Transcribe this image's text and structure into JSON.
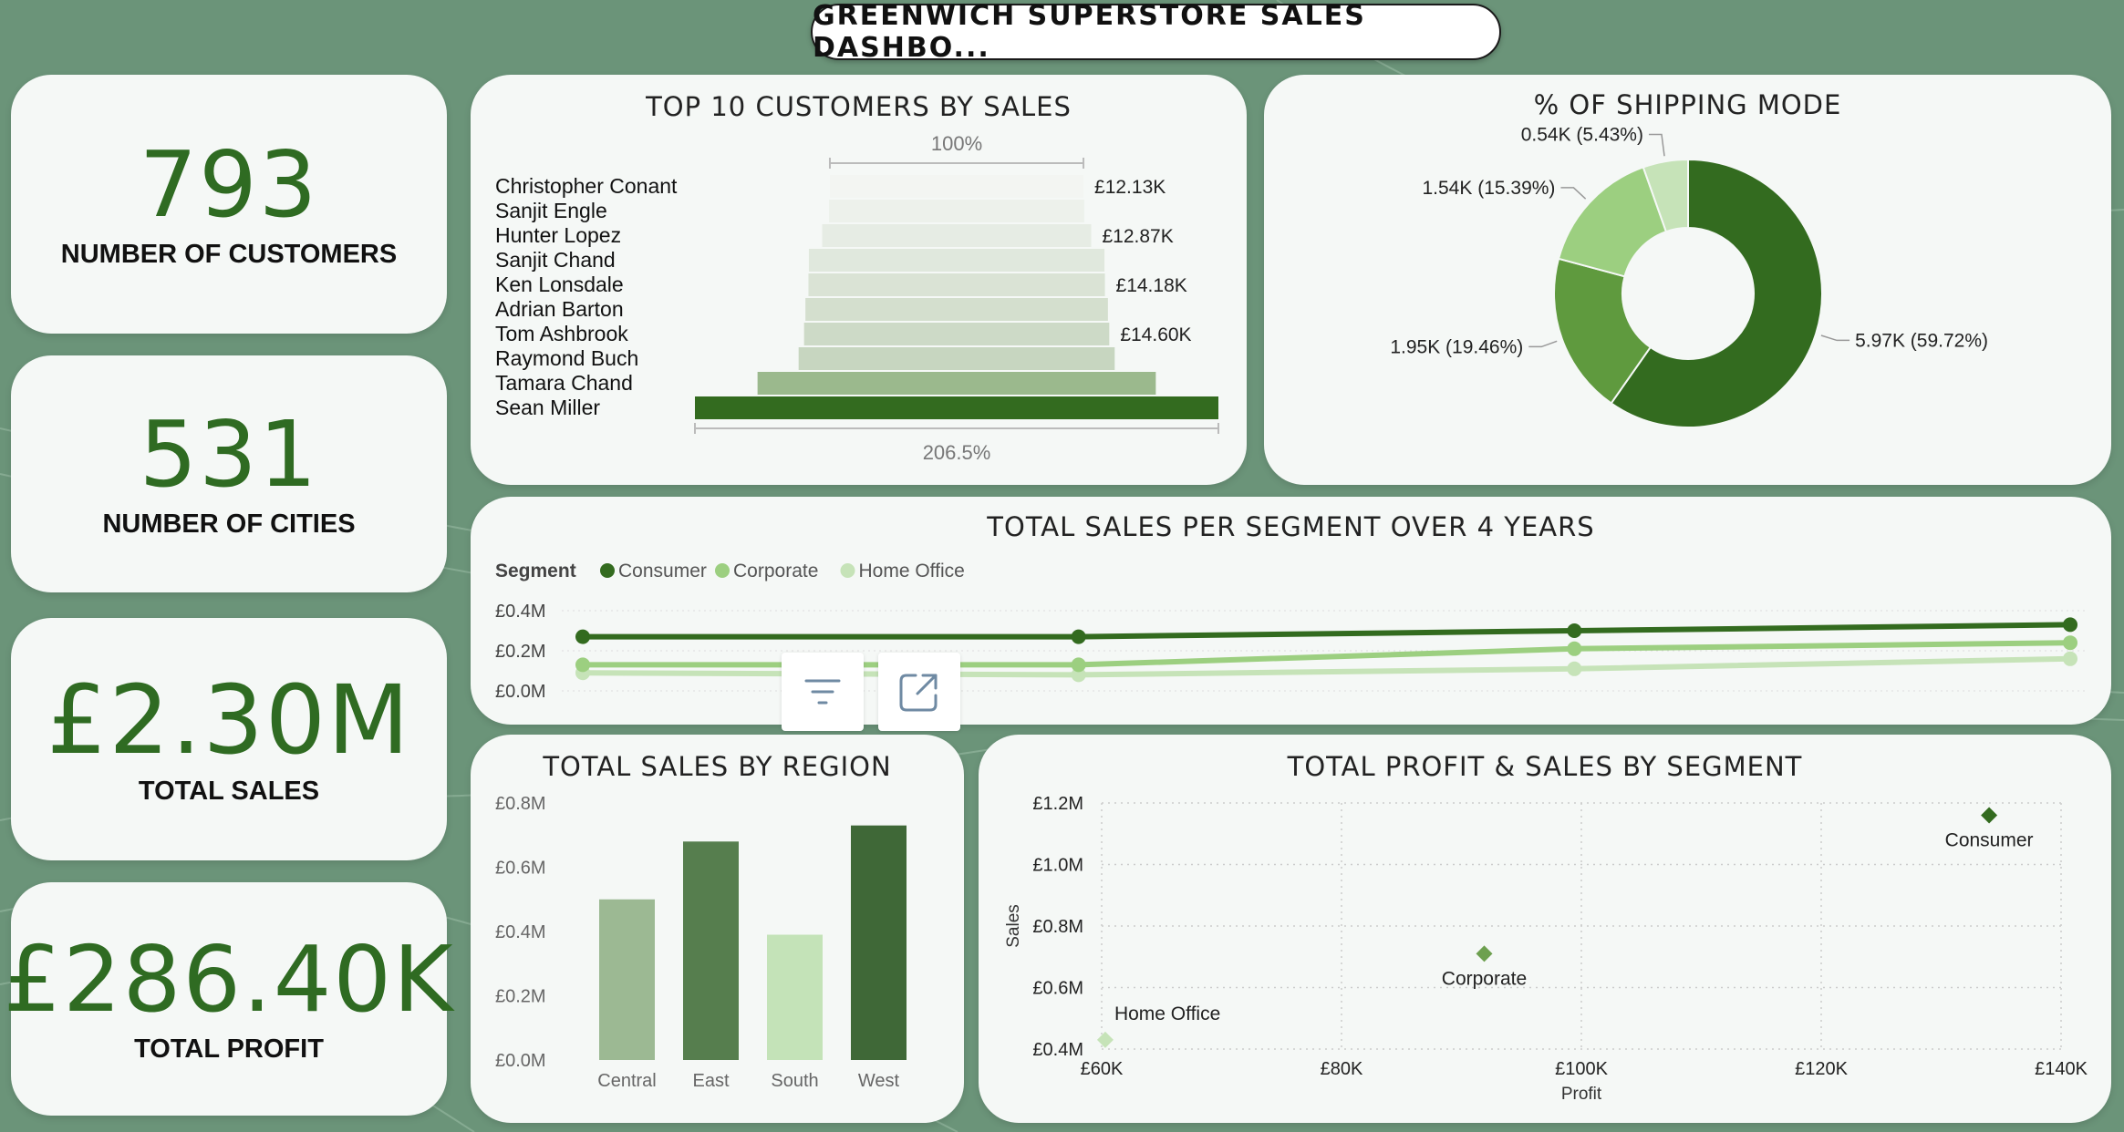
{
  "dashboard": {
    "title": "GREENWICH SUPERSTORE SALES  DASHBO..."
  },
  "kpis": [
    {
      "value": "793",
      "label": "NUMBER OF CUSTOMERS"
    },
    {
      "value": "531",
      "label": "NUMBER OF CITIES"
    },
    {
      "value": "£2.30M",
      "label": "TOTAL SALES"
    },
    {
      "value": "£286.40K",
      "label": "TOTAL PROFIT"
    }
  ],
  "colors": {
    "dark_green": "#336b1f",
    "mid_green": "#5f9a3e",
    "light_green": "#9ccf80",
    "pale_green": "#c6e3b8",
    "kpi_green": "#2f6b22"
  },
  "toolbar": {
    "filter_icon": "filter-icon",
    "focus_icon": "focus-mode-icon"
  },
  "chart_data": [
    {
      "id": "top_customers",
      "type": "bar",
      "title": "TOP 10 CUSTOMERS BY SALES",
      "orientation": "funnel",
      "top_label": "100%",
      "bottom_label": "206.5%",
      "categories": [
        "Christopher Conant",
        "Sanjit Engle",
        "Hunter Lopez",
        "Sanjit Chand",
        "Ken Lonsdale",
        "Adrian Barton",
        "Tom Ashbrook",
        "Raymond Buch",
        "Tamara Chand",
        "Sean Miller"
      ],
      "values": [
        12.13,
        12.21,
        12.87,
        14.14,
        14.18,
        14.47,
        14.6,
        15.12,
        19.05,
        25.04
      ],
      "value_labels": [
        "£12.13K",
        "",
        "£12.87K",
        "",
        "£14.18K",
        "",
        "£14.60K",
        "",
        "",
        ""
      ],
      "unit": "£K"
    },
    {
      "id": "shipping_mode",
      "type": "pie",
      "donut": true,
      "title": "% OF SHIPPING MODE",
      "slices": [
        {
          "value": 59.72,
          "label": "5.97K (59.72%)",
          "color": "#336b1f"
        },
        {
          "value": 19.46,
          "label": "1.95K (19.46%)",
          "color": "#5f9a3e"
        },
        {
          "value": 15.39,
          "label": "1.54K (15.39%)",
          "color": "#9ccf80"
        },
        {
          "value": 5.43,
          "label": "0.54K (5.43%)",
          "color": "#c6e3b8"
        }
      ]
    },
    {
      "id": "segment_over_years",
      "type": "line",
      "title": "TOTAL SALES PER SEGMENT OVER 4 YEARS",
      "legend_title": "Segment",
      "x": [
        1,
        2,
        3,
        4
      ],
      "ylim": [
        0,
        0.4
      ],
      "yticks": [
        "£0.0M",
        "£0.2M",
        "£0.4M"
      ],
      "series": [
        {
          "name": "Consumer",
          "values": [
            0.27,
            0.27,
            0.3,
            0.33
          ],
          "color": "#336b1f"
        },
        {
          "name": "Corporate",
          "values": [
            0.13,
            0.13,
            0.21,
            0.24
          ],
          "color": "#9ccf80"
        },
        {
          "name": "Home Office",
          "values": [
            0.09,
            0.08,
            0.11,
            0.16
          ],
          "color": "#c6e3b8"
        }
      ]
    },
    {
      "id": "sales_by_region",
      "type": "bar",
      "title": "TOTAL SALES BY REGION",
      "categories": [
        "Central",
        "East",
        "South",
        "West"
      ],
      "values": [
        0.5,
        0.68,
        0.39,
        0.73
      ],
      "colors": [
        "#9cb993",
        "#567e4e",
        "#c4e3b8",
        "#3f6837"
      ],
      "ylim": [
        0,
        0.8
      ],
      "yticks": [
        "£0.0M",
        "£0.2M",
        "£0.4M",
        "£0.6M",
        "£0.8M"
      ]
    },
    {
      "id": "profit_sales_segment",
      "type": "scatter",
      "title": "TOTAL PROFIT & SALES BY SEGMENT",
      "xlabel": "Profit",
      "ylabel": "Sales",
      "xlim": [
        60,
        140
      ],
      "ylim": [
        0.4,
        1.2
      ],
      "xticks": [
        "£60K",
        "£80K",
        "£100K",
        "£120K",
        "£140K"
      ],
      "yticks": [
        "£0.4M",
        "£0.6M",
        "£0.8M",
        "£1.0M",
        "£1.2M"
      ],
      "points": [
        {
          "name": "Consumer",
          "x": 134,
          "y": 1.16,
          "color": "#336b1f"
        },
        {
          "name": "Corporate",
          "x": 91.9,
          "y": 0.71,
          "color": "#6da04f"
        },
        {
          "name": "Home Office",
          "x": 60.3,
          "y": 0.43,
          "color": "#c6e3b8"
        }
      ]
    }
  ]
}
